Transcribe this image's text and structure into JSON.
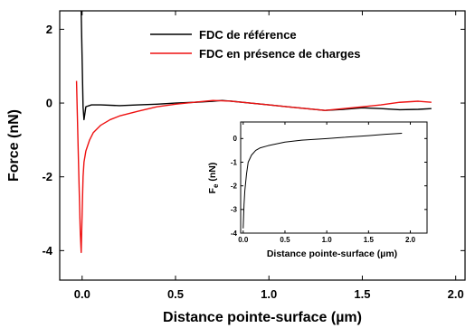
{
  "chart_data": [
    {
      "type": "line",
      "title": "",
      "xlabel": "Distance pointe-surface (µm)",
      "ylabel": "Force (nN)",
      "xlim": [
        -0.12,
        2.05
      ],
      "ylim": [
        -4.8,
        2.5
      ],
      "x_ticks": [
        0.0,
        0.5,
        1.0,
        1.5,
        2.0
      ],
      "x_tick_labels": [
        "0.0",
        "0.5",
        "1.0",
        "1.5",
        "2.0"
      ],
      "y_ticks": [
        -4,
        -2,
        0,
        2
      ],
      "y_tick_labels": [
        "-4",
        "-2",
        "0",
        "2"
      ],
      "grid": false,
      "legend": "top-center",
      "series": [
        {
          "name": "FDC de référence",
          "color": "#000000",
          "points": [
            [
              -0.005,
              2.5
            ],
            [
              0.0,
              1.2
            ],
            [
              0.005,
              -0.1
            ],
            [
              0.01,
              -0.45
            ],
            [
              0.02,
              -0.1
            ],
            [
              0.05,
              -0.05
            ],
            [
              0.1,
              -0.05
            ],
            [
              0.2,
              -0.07
            ],
            [
              0.3,
              -0.05
            ],
            [
              0.4,
              -0.03
            ],
            [
              0.5,
              0.0
            ],
            [
              0.6,
              0.02
            ],
            [
              0.7,
              0.05
            ],
            [
              0.75,
              0.07
            ],
            [
              0.8,
              0.05
            ],
            [
              0.9,
              0.0
            ],
            [
              1.0,
              -0.05
            ],
            [
              1.1,
              -0.1
            ],
            [
              1.2,
              -0.15
            ],
            [
              1.3,
              -0.2
            ],
            [
              1.4,
              -0.17
            ],
            [
              1.5,
              -0.13
            ],
            [
              1.6,
              -0.15
            ],
            [
              1.7,
              -0.18
            ],
            [
              1.8,
              -0.17
            ],
            [
              1.87,
              -0.15
            ]
          ]
        },
        {
          "name": "FDC en présence de charges",
          "color": "#ee1111",
          "points": [
            [
              -0.03,
              0.6
            ],
            [
              -0.02,
              -1.5
            ],
            [
              -0.01,
              -3.5
            ],
            [
              -0.005,
              -4.05
            ],
            [
              0.0,
              -3.0
            ],
            [
              0.005,
              -2.0
            ],
            [
              0.01,
              -1.6
            ],
            [
              0.02,
              -1.3
            ],
            [
              0.04,
              -1.0
            ],
            [
              0.06,
              -0.8
            ],
            [
              0.1,
              -0.6
            ],
            [
              0.15,
              -0.45
            ],
            [
              0.2,
              -0.35
            ],
            [
              0.3,
              -0.22
            ],
            [
              0.4,
              -0.1
            ],
            [
              0.5,
              -0.03
            ],
            [
              0.6,
              0.02
            ],
            [
              0.7,
              0.07
            ],
            [
              0.8,
              0.05
            ],
            [
              0.9,
              0.0
            ],
            [
              1.0,
              -0.05
            ],
            [
              1.1,
              -0.1
            ],
            [
              1.2,
              -0.15
            ],
            [
              1.3,
              -0.2
            ],
            [
              1.4,
              -0.15
            ],
            [
              1.5,
              -0.1
            ],
            [
              1.6,
              -0.05
            ],
            [
              1.7,
              0.02
            ],
            [
              1.8,
              0.05
            ],
            [
              1.87,
              0.02
            ]
          ]
        }
      ]
    },
    {
      "type": "line",
      "title": "",
      "xlabel": "Distance pointe-surface (µm)",
      "ylabel_main": "F",
      "ylabel_sub": "e",
      "ylabel_unit": " (nN)",
      "xlim": [
        -0.03,
        2.2
      ],
      "ylim": [
        -4.0,
        0.7
      ],
      "x_ticks": [
        0.0,
        0.5,
        1.0,
        1.5,
        2.0
      ],
      "x_tick_labels": [
        "0.0",
        "0.5",
        "1.0",
        "1.5",
        "2.0"
      ],
      "y_ticks": [
        -4,
        -3,
        -2,
        -1,
        0
      ],
      "y_tick_labels": [
        "-4",
        "-3",
        "-2",
        "-1",
        "0"
      ],
      "grid": false,
      "series": [
        {
          "color": "#000000",
          "points": [
            [
              0.0,
              -3.8
            ],
            [
              0.01,
              -2.8
            ],
            [
              0.02,
              -2.2
            ],
            [
              0.04,
              -1.5
            ],
            [
              0.06,
              -1.0
            ],
            [
              0.1,
              -0.7
            ],
            [
              0.15,
              -0.5
            ],
            [
              0.2,
              -0.4
            ],
            [
              0.3,
              -0.3
            ],
            [
              0.5,
              -0.15
            ],
            [
              0.7,
              -0.07
            ],
            [
              1.0,
              0.0
            ],
            [
              1.2,
              0.05
            ],
            [
              1.5,
              0.12
            ],
            [
              1.7,
              0.18
            ],
            [
              1.9,
              0.22
            ]
          ]
        }
      ]
    }
  ]
}
